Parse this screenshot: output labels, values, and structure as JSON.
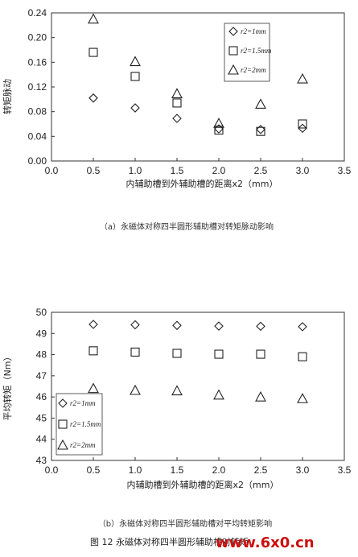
{
  "chart_data": [
    {
      "type": "scatter",
      "title": "",
      "xlabel": "内辅助槽到外辅助槽的距离x2（mm）",
      "ylabel": "转矩脉动",
      "xlim": [
        0,
        3.5
      ],
      "ylim": [
        0,
        0.24
      ],
      "xticks": [
        "0.0",
        "0.5",
        "1.0",
        "1.5",
        "2.0",
        "2.5",
        "3.0",
        "3.5"
      ],
      "yticks": [
        "0.00",
        "0.04",
        "0.08",
        "0.12",
        "0.16",
        "0.20",
        "0.24"
      ],
      "x": [
        0.5,
        1.0,
        1.5,
        2.0,
        2.5,
        3.0
      ],
      "series": [
        {
          "name": "r2=1mm",
          "marker": "diamond",
          "values": [
            0.102,
            0.086,
            0.069,
            0.052,
            0.051,
            0.053
          ]
        },
        {
          "name": "r2=1.5mm",
          "marker": "square",
          "values": [
            0.176,
            0.137,
            0.094,
            0.05,
            0.048,
            0.06
          ]
        },
        {
          "name": "r2=2mm",
          "marker": "triangle",
          "values": [
            0.23,
            0.161,
            0.109,
            0.061,
            0.092,
            0.133
          ]
        }
      ],
      "legend": "top-right",
      "caption": "（a）永磁体对称四半圆形辅助槽对转矩脉动影响"
    },
    {
      "type": "scatter",
      "title": "",
      "xlabel": "内辅助槽到外辅助槽的距离x2（mm）",
      "ylabel": "平均转矩（Nm）",
      "xlim": [
        0,
        3.5
      ],
      "ylim": [
        43,
        50
      ],
      "xticks": [
        "0.0",
        "0.5",
        "1.0",
        "1.5",
        "2.0",
        "2.5",
        "3.0",
        "3.5"
      ],
      "yticks": [
        "43",
        "44",
        "45",
        "46",
        "47",
        "48",
        "49",
        "50"
      ],
      "x": [
        0.5,
        1.0,
        1.5,
        2.0,
        2.5,
        3.0
      ],
      "series": [
        {
          "name": "r2=1mm",
          "marker": "diamond",
          "values": [
            49.43,
            49.41,
            49.38,
            49.35,
            49.34,
            49.32
          ]
        },
        {
          "name": "r2=1.5mm",
          "marker": "square",
          "values": [
            48.18,
            48.12,
            48.06,
            48.02,
            48.02,
            47.9
          ]
        },
        {
          "name": "r2=2mm",
          "marker": "triangle",
          "values": [
            46.4,
            46.31,
            46.29,
            46.09,
            46.0,
            45.92
          ]
        }
      ],
      "legend": "left",
      "caption": "（b）永磁体对称四半圆形辅助槽对平均转矩影响"
    }
  ],
  "figure_title": "图 12 永磁体对称四半圆形辅助槽对转矩",
  "watermark": "www.6x0.cn"
}
